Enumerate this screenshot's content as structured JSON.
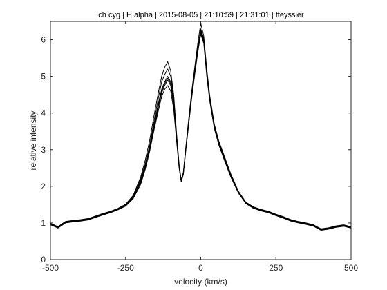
{
  "chart_data": {
    "type": "line",
    "title": "ch cyg | H alpha | 2015-08-05 | 21:10:59 | 21:31:01 | fteyssier",
    "xlabel": "velocity (km/s)",
    "ylabel": "relative intensity",
    "xlim": [
      -500,
      500
    ],
    "ylim": [
      0,
      6.5
    ],
    "x_ticks": [
      -500,
      -250,
      0,
      250,
      500
    ],
    "y_ticks": [
      0,
      1,
      2,
      3,
      4,
      5,
      6
    ],
    "x_tick_labels": [
      "-500",
      "-250",
      "0",
      "250",
      "500"
    ],
    "y_tick_labels": [
      "0",
      "1",
      "2",
      "3",
      "4",
      "5",
      "6"
    ],
    "grid": false,
    "legend": "none",
    "colors": {
      "line": "#000000",
      "axes": "#262626",
      "background": "#ffffff"
    },
    "x": [
      -500,
      -475,
      -450,
      -425,
      -400,
      -375,
      -350,
      -325,
      -300,
      -275,
      -250,
      -225,
      -200,
      -185,
      -170,
      -155,
      -140,
      -130,
      -120,
      -110,
      -100,
      -90,
      -80,
      -72,
      -65,
      -58,
      -50,
      -40,
      -30,
      -20,
      -10,
      0,
      10,
      20,
      30,
      45,
      60,
      80,
      100,
      125,
      150,
      175,
      200,
      225,
      250,
      275,
      300,
      325,
      350,
      375,
      400,
      425,
      450,
      475,
      500
    ],
    "series": [
      {
        "values": [
          0.97,
          0.88,
          1.02,
          1.05,
          1.07,
          1.1,
          1.17,
          1.24,
          1.3,
          1.38,
          1.48,
          1.7,
          2.15,
          2.55,
          3.05,
          3.7,
          4.3,
          4.65,
          4.85,
          5.0,
          4.85,
          4.3,
          3.3,
          2.55,
          2.15,
          2.35,
          3.0,
          3.75,
          4.5,
          5.15,
          5.75,
          6.3,
          6.0,
          5.1,
          4.4,
          3.65,
          3.2,
          2.75,
          2.3,
          1.85,
          1.55,
          1.42,
          1.35,
          1.3,
          1.22,
          1.15,
          1.07,
          1.02,
          0.98,
          0.93,
          0.82,
          0.85,
          0.9,
          0.93,
          0.88
        ]
      },
      {
        "values": [
          0.96,
          0.87,
          1.01,
          1.04,
          1.06,
          1.09,
          1.16,
          1.23,
          1.29,
          1.37,
          1.47,
          1.68,
          2.1,
          2.5,
          3.0,
          3.6,
          4.2,
          4.55,
          4.75,
          4.9,
          4.75,
          4.2,
          3.25,
          2.52,
          2.13,
          2.33,
          2.98,
          3.72,
          4.45,
          5.1,
          5.7,
          6.2,
          5.95,
          5.05,
          4.35,
          3.6,
          3.15,
          2.7,
          2.27,
          1.83,
          1.54,
          1.41,
          1.34,
          1.29,
          1.21,
          1.14,
          1.06,
          1.01,
          0.97,
          0.92,
          0.81,
          0.84,
          0.89,
          0.92,
          0.87
        ]
      },
      {
        "values": [
          0.98,
          0.89,
          1.03,
          1.06,
          1.08,
          1.11,
          1.18,
          1.25,
          1.31,
          1.39,
          1.5,
          1.72,
          2.2,
          2.6,
          3.12,
          3.8,
          4.45,
          4.85,
          5.05,
          5.2,
          5.0,
          4.4,
          3.35,
          2.57,
          2.16,
          2.36,
          3.02,
          3.8,
          4.55,
          5.2,
          5.8,
          6.25,
          6.05,
          5.15,
          4.42,
          3.68,
          3.22,
          2.77,
          2.32,
          1.86,
          1.56,
          1.43,
          1.36,
          1.31,
          1.23,
          1.16,
          1.08,
          1.03,
          0.99,
          0.94,
          0.83,
          0.86,
          0.91,
          0.94,
          0.89
        ]
      },
      {
        "values": [
          0.95,
          0.86,
          1.0,
          1.03,
          1.05,
          1.08,
          1.15,
          1.22,
          1.28,
          1.36,
          1.46,
          1.66,
          2.05,
          2.45,
          2.95,
          3.55,
          4.1,
          4.45,
          4.65,
          4.75,
          4.6,
          4.1,
          3.2,
          2.5,
          2.12,
          2.32,
          2.95,
          3.7,
          4.42,
          5.05,
          5.65,
          6.15,
          5.9,
          5.0,
          4.32,
          3.58,
          3.13,
          2.68,
          2.25,
          1.82,
          1.53,
          1.4,
          1.33,
          1.28,
          1.2,
          1.13,
          1.05,
          1.0,
          0.96,
          0.91,
          0.8,
          0.83,
          0.88,
          0.91,
          0.86
        ]
      },
      {
        "values": [
          0.99,
          0.9,
          1.04,
          1.07,
          1.09,
          1.12,
          1.19,
          1.26,
          1.32,
          1.4,
          1.51,
          1.75,
          2.25,
          2.7,
          3.25,
          3.95,
          4.6,
          5.0,
          5.25,
          5.4,
          5.15,
          4.5,
          3.4,
          2.6,
          2.17,
          2.38,
          3.05,
          3.85,
          4.6,
          5.25,
          5.9,
          6.45,
          6.1,
          5.2,
          4.47,
          3.7,
          3.24,
          2.79,
          2.34,
          1.87,
          1.57,
          1.44,
          1.37,
          1.32,
          1.24,
          1.17,
          1.09,
          1.04,
          1.0,
          0.95,
          0.84,
          0.87,
          0.92,
          0.95,
          0.9
        ]
      },
      {
        "values": [
          0.97,
          0.88,
          1.02,
          1.05,
          1.07,
          1.1,
          1.17,
          1.24,
          1.3,
          1.38,
          1.48,
          1.69,
          2.12,
          2.52,
          3.02,
          3.65,
          4.25,
          4.6,
          4.8,
          4.95,
          4.8,
          4.25,
          3.28,
          2.53,
          2.14,
          2.34,
          2.99,
          3.74,
          4.48,
          5.12,
          5.72,
          6.22,
          5.98,
          5.08,
          4.38,
          3.62,
          3.17,
          2.72,
          2.28,
          1.84,
          1.55,
          1.42,
          1.35,
          1.3,
          1.22,
          1.15,
          1.07,
          1.02,
          0.98,
          0.93,
          0.82,
          0.85,
          0.9,
          0.93,
          0.88
        ]
      }
    ]
  }
}
